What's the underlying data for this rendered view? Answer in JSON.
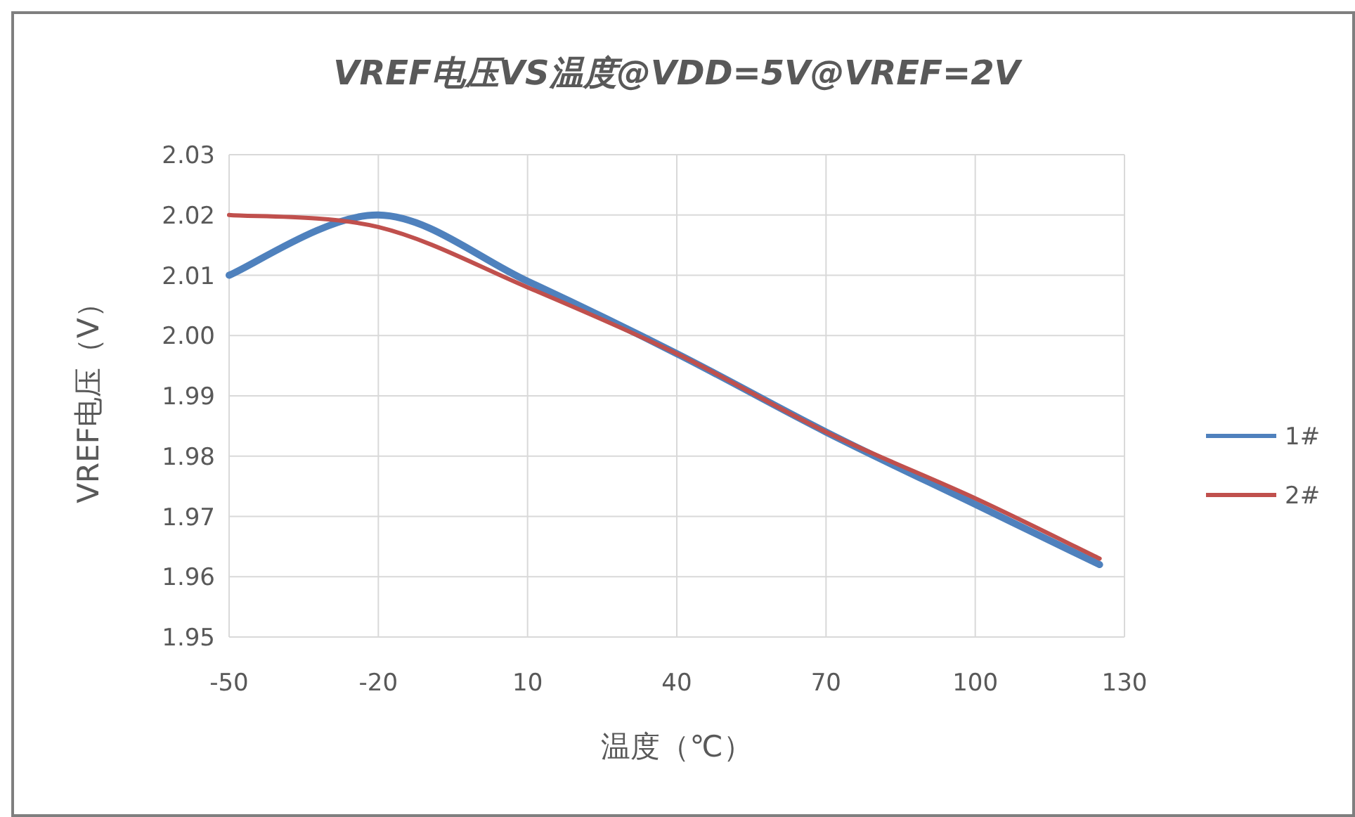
{
  "chart_data": {
    "type": "line",
    "title": "VREF电压VS温度@VDD=5V@VREF=2V",
    "xlabel": "温度（℃）",
    "ylabel": "VREF电压（V）",
    "x": [
      -50,
      -20,
      10,
      40,
      70,
      100,
      125
    ],
    "series": [
      {
        "name": "1#",
        "color": "#4f81bd",
        "values": [
          2.01,
          2.02,
          2.009,
          1.997,
          1.984,
          1.972,
          1.962
        ]
      },
      {
        "name": "2#",
        "color": "#c0504d",
        "values": [
          2.02,
          2.018,
          2.008,
          1.997,
          1.984,
          1.973,
          1.963
        ]
      }
    ],
    "xlim": [
      -50,
      130
    ],
    "xticks": [
      -50,
      -20,
      10,
      40,
      70,
      100,
      130
    ],
    "ylim": [
      1.95,
      2.03
    ],
    "yticks": [
      1.95,
      1.96,
      1.97,
      1.98,
      1.99,
      {
        "value": 2,
        "label": "2.00"
      },
      2.01,
      2.02,
      2.03
    ],
    "grid": true,
    "legend": "right",
    "marker": "none",
    "line_style": "solid"
  }
}
